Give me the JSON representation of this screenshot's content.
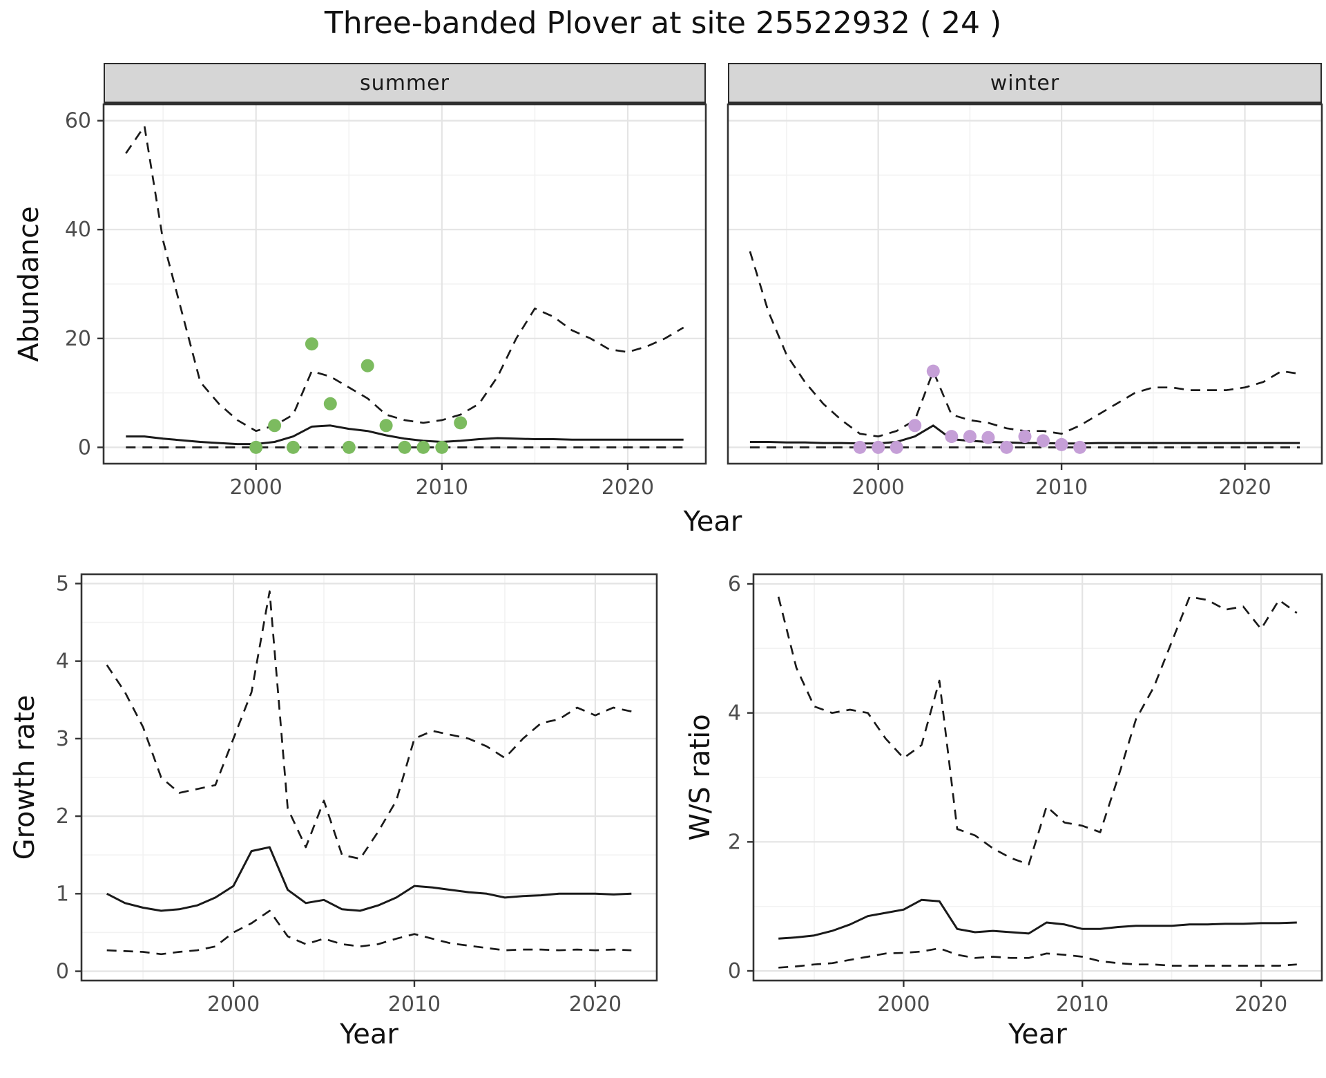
{
  "page": {
    "title": "Three-banded Plover at site 25522932 ( 24 )"
  },
  "colors": {
    "line": "#1a1a1a",
    "grid_major": "#e4e4e4",
    "grid_minor": "#f2f2f2",
    "tick_label": "#4d4d4d",
    "panel_border": "#333333",
    "strip_bg": "#d6d6d6",
    "summer_points": "#7cbb5f",
    "winter_points": "#c59fd7"
  },
  "top_figure": {
    "ylabel": "Abundance",
    "xlabel": "Year"
  },
  "chart_data": [
    {
      "id": "abundance-summer",
      "type": "line",
      "facet_label": "summer",
      "ylabel": "Abundance",
      "xlabel": "Year",
      "xlim": [
        1991.8,
        2024.2
      ],
      "ylim": [
        -3,
        63
      ],
      "xticks": [
        2000,
        2010,
        2020
      ],
      "xticks_minor": [
        1995,
        2005,
        2015
      ],
      "yticks": [
        0,
        20,
        40,
        60
      ],
      "yticks_minor": [
        10,
        30,
        50
      ],
      "show_y_tick_labels": true,
      "years": [
        1993,
        1994,
        1995,
        1996,
        1997,
        1998,
        1999,
        2000,
        2001,
        2002,
        2003,
        2004,
        2005,
        2006,
        2007,
        2008,
        2009,
        2010,
        2011,
        2012,
        2013,
        2014,
        2015,
        2016,
        2017,
        2018,
        2019,
        2020,
        2021,
        2022,
        2023
      ],
      "series": [
        {
          "name": "upper-95ci",
          "style": "dashed",
          "values": [
            54,
            59,
            38,
            25,
            12,
            8,
            5,
            3,
            4,
            6,
            14,
            13,
            11,
            9,
            6,
            5,
            4.5,
            5,
            6,
            8,
            13,
            20,
            25.5,
            24,
            21.5,
            20,
            18,
            17.5,
            18.5,
            20,
            22
          ]
        },
        {
          "name": "median",
          "style": "solid",
          "values": [
            2,
            2,
            1.6,
            1.3,
            1,
            0.8,
            0.6,
            0.6,
            1,
            2,
            3.8,
            4,
            3.4,
            3,
            2.2,
            1.6,
            1.2,
            1,
            1.2,
            1.5,
            1.7,
            1.6,
            1.5,
            1.5,
            1.4,
            1.4,
            1.4,
            1.4,
            1.4,
            1.4,
            1.4
          ]
        },
        {
          "name": "lower-95ci",
          "style": "dashed",
          "values": [
            0,
            0,
            0,
            0,
            0,
            0,
            0,
            0,
            0,
            0,
            0,
            0,
            0,
            0,
            0,
            0,
            0,
            0,
            0,
            0,
            0,
            0,
            0,
            0,
            0,
            0,
            0,
            0,
            0,
            0,
            0
          ]
        }
      ],
      "points": {
        "name": "observed-counts-summer",
        "color_key": "summer_points",
        "years": [
          2000,
          2001,
          2002,
          2003,
          2004,
          2005,
          2006,
          2007,
          2008,
          2009,
          2010,
          2011
        ],
        "values": [
          0,
          4,
          0,
          19,
          8,
          0,
          15,
          4,
          0,
          0,
          0,
          4.5
        ]
      }
    },
    {
      "id": "abundance-winter",
      "type": "line",
      "facet_label": "winter",
      "ylabel": "Abundance",
      "xlabel": "Year",
      "xlim": [
        1991.8,
        2024.2
      ],
      "ylim": [
        -3,
        63
      ],
      "xticks": [
        2000,
        2010,
        2020
      ],
      "xticks_minor": [
        1995,
        2005,
        2015
      ],
      "yticks": [
        0,
        20,
        40,
        60
      ],
      "yticks_minor": [
        10,
        30,
        50
      ],
      "show_y_tick_labels": false,
      "years": [
        1993,
        1994,
        1995,
        1996,
        1997,
        1998,
        1999,
        2000,
        2001,
        2002,
        2003,
        2004,
        2005,
        2006,
        2007,
        2008,
        2009,
        2010,
        2011,
        2012,
        2013,
        2014,
        2015,
        2016,
        2017,
        2018,
        2019,
        2020,
        2021,
        2022,
        2023
      ],
      "series": [
        {
          "name": "upper-95ci",
          "style": "dashed",
          "values": [
            36,
            25,
            17,
            12,
            8,
            5,
            2.5,
            2,
            3,
            5,
            14,
            6,
            5,
            4.5,
            3.5,
            3,
            3,
            2.5,
            4,
            6,
            8,
            10,
            11,
            11,
            10.5,
            10.5,
            10.5,
            11,
            12,
            14,
            13.5
          ]
        },
        {
          "name": "median",
          "style": "solid",
          "values": [
            1,
            1,
            0.9,
            0.9,
            0.8,
            0.8,
            0.7,
            0.7,
            1,
            2,
            4,
            1.5,
            1.2,
            1,
            0.9,
            0.8,
            0.8,
            0.7,
            0.7,
            0.8,
            0.8,
            0.8,
            0.8,
            0.8,
            0.8,
            0.8,
            0.8,
            0.8,
            0.8,
            0.8,
            0.8
          ]
        },
        {
          "name": "lower-95ci",
          "style": "dashed",
          "values": [
            0,
            0,
            0,
            0,
            0,
            0,
            0,
            0,
            0,
            0,
            0,
            0,
            0,
            0,
            0,
            0,
            0,
            0,
            0,
            0,
            0,
            0,
            0,
            0,
            0,
            0,
            0,
            0,
            0,
            0,
            0
          ]
        }
      ],
      "points": {
        "name": "observed-counts-winter",
        "color_key": "winter_points",
        "years": [
          1999,
          2000,
          2001,
          2002,
          2003,
          2004,
          2005,
          2006,
          2007,
          2008,
          2009,
          2010,
          2011
        ],
        "values": [
          0,
          0,
          0,
          4,
          14,
          2,
          2,
          1.8,
          0,
          2,
          1.2,
          0.5,
          0
        ]
      }
    },
    {
      "id": "growth-rate",
      "type": "line",
      "ylabel": "Growth rate",
      "xlabel": "Year",
      "xlim": [
        1991.6,
        2023.4
      ],
      "ylim": [
        -0.12,
        5.12
      ],
      "xticks": [
        2000,
        2010,
        2020
      ],
      "xticks_minor": [
        1995,
        2005,
        2015
      ],
      "yticks": [
        0,
        1,
        2,
        3,
        4,
        5
      ],
      "yticks_minor": [
        0.5,
        1.5,
        2.5,
        3.5,
        4.5
      ],
      "show_y_tick_labels": true,
      "years": [
        1993,
        1994,
        1995,
        1996,
        1997,
        1998,
        1999,
        2000,
        2001,
        2002,
        2003,
        2004,
        2005,
        2006,
        2007,
        2008,
        2009,
        2010,
        2011,
        2012,
        2013,
        2014,
        2015,
        2016,
        2017,
        2018,
        2019,
        2020,
        2021,
        2022
      ],
      "series": [
        {
          "name": "upper-95ci",
          "style": "dashed",
          "values": [
            3.95,
            3.6,
            3.15,
            2.5,
            2.3,
            2.35,
            2.4,
            3.0,
            3.6,
            4.9,
            2.1,
            1.6,
            2.2,
            1.5,
            1.45,
            1.8,
            2.2,
            3.0,
            3.1,
            3.05,
            3.0,
            2.9,
            2.75,
            3.0,
            3.2,
            3.25,
            3.4,
            3.3,
            3.4,
            3.35
          ]
        },
        {
          "name": "median",
          "style": "solid",
          "values": [
            1.0,
            0.88,
            0.82,
            0.78,
            0.8,
            0.85,
            0.95,
            1.1,
            1.55,
            1.6,
            1.05,
            0.88,
            0.92,
            0.8,
            0.78,
            0.85,
            0.95,
            1.1,
            1.08,
            1.05,
            1.02,
            1.0,
            0.95,
            0.97,
            0.98,
            1.0,
            1.0,
            1.0,
            0.99,
            1.0
          ]
        },
        {
          "name": "lower-95ci",
          "style": "dashed",
          "values": [
            0.27,
            0.26,
            0.25,
            0.22,
            0.25,
            0.27,
            0.32,
            0.5,
            0.62,
            0.78,
            0.45,
            0.35,
            0.42,
            0.35,
            0.32,
            0.35,
            0.42,
            0.48,
            0.42,
            0.36,
            0.33,
            0.3,
            0.27,
            0.28,
            0.28,
            0.27,
            0.28,
            0.27,
            0.28,
            0.27
          ]
        }
      ]
    },
    {
      "id": "ws-ratio",
      "type": "line",
      "ylabel": "W/S ratio",
      "xlabel": "Year",
      "xlim": [
        1991.6,
        2023.4
      ],
      "ylim": [
        -0.15,
        6.15
      ],
      "xticks": [
        2000,
        2010,
        2020
      ],
      "xticks_minor": [
        1995,
        2005,
        2015
      ],
      "yticks": [
        0,
        2,
        4,
        6
      ],
      "yticks_minor": [
        1,
        3,
        5
      ],
      "show_y_tick_labels": true,
      "years": [
        1993,
        1994,
        1995,
        1996,
        1997,
        1998,
        1999,
        2000,
        2001,
        2002,
        2003,
        2004,
        2005,
        2006,
        2007,
        2008,
        2009,
        2010,
        2011,
        2012,
        2013,
        2014,
        2015,
        2016,
        2017,
        2018,
        2019,
        2020,
        2021,
        2022
      ],
      "series": [
        {
          "name": "upper-95ci",
          "style": "dashed",
          "values": [
            5.8,
            4.7,
            4.1,
            4.0,
            4.05,
            4.0,
            3.6,
            3.3,
            3.5,
            4.5,
            2.2,
            2.1,
            1.9,
            1.75,
            1.65,
            2.55,
            2.3,
            2.25,
            2.15,
            3.0,
            3.9,
            4.4,
            5.1,
            5.8,
            5.75,
            5.6,
            5.65,
            5.3,
            5.75,
            5.55
          ]
        },
        {
          "name": "median",
          "style": "solid",
          "values": [
            0.5,
            0.52,
            0.55,
            0.62,
            0.72,
            0.85,
            0.9,
            0.95,
            1.1,
            1.08,
            0.65,
            0.6,
            0.62,
            0.6,
            0.58,
            0.75,
            0.72,
            0.65,
            0.65,
            0.68,
            0.7,
            0.7,
            0.7,
            0.72,
            0.72,
            0.73,
            0.73,
            0.74,
            0.74,
            0.75
          ]
        },
        {
          "name": "lower-95ci",
          "style": "dashed",
          "values": [
            0.05,
            0.07,
            0.1,
            0.12,
            0.17,
            0.22,
            0.27,
            0.28,
            0.3,
            0.35,
            0.25,
            0.2,
            0.22,
            0.2,
            0.2,
            0.27,
            0.25,
            0.22,
            0.15,
            0.12,
            0.1,
            0.1,
            0.08,
            0.08,
            0.08,
            0.08,
            0.08,
            0.08,
            0.08,
            0.1
          ]
        }
      ]
    }
  ]
}
